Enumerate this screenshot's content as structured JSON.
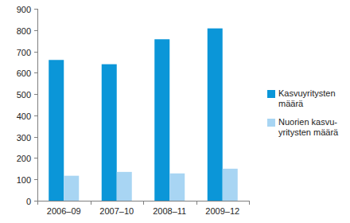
{
  "chart_data": {
    "type": "bar",
    "categories": [
      "2006–09",
      "2007–10",
      "2008–11",
      "2009–12"
    ],
    "series": [
      {
        "name": "Kasvuyritysten määrä",
        "color": "#0b96d8",
        "values": [
          660,
          640,
          757,
          808
        ]
      },
      {
        "name": "Nuorien kasvu-yritysten määrä",
        "color": "#a8d5f3",
        "values": [
          117,
          135,
          128,
          150
        ]
      }
    ],
    "ylim": [
      0,
      900
    ],
    "yticks": [
      0,
      100,
      200,
      300,
      400,
      500,
      600,
      700,
      800,
      900
    ],
    "grid": false,
    "legend": "right"
  }
}
